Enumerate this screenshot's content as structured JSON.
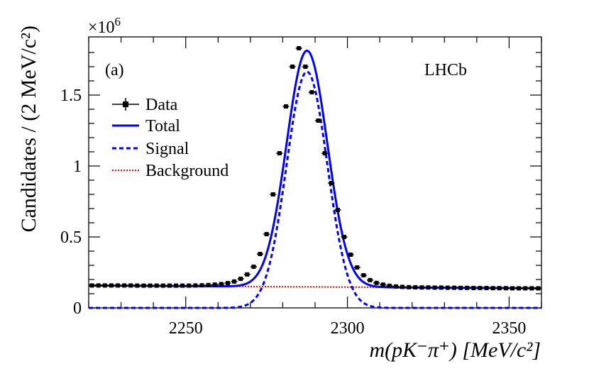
{
  "chart_data": {
    "type": "line",
    "panel_label": "(a)",
    "experiment_label": "LHCb",
    "multiplier": "×10",
    "multiplier_exp": "6",
    "ylabel": "Candidates / (2 MeV/c²)",
    "xlabel": "m(pK⁻π⁺) [MeV/c²]",
    "xlim": [
      2220,
      2360
    ],
    "ylim": [
      0,
      1.91
    ],
    "y_unit_scale": 1000000,
    "x_ticks": [
      2250,
      2300,
      2350
    ],
    "x_tick_labels": [
      "2250",
      "2300",
      "2350"
    ],
    "y_ticks": [
      0,
      0.5,
      1,
      1.5
    ],
    "y_tick_labels": [
      "0",
      "0.5",
      "1",
      "1.5"
    ],
    "legend": {
      "position": "top-left",
      "entries": [
        {
          "label": "Data",
          "style": "points",
          "color": "#000000"
        },
        {
          "label": "Total",
          "style": "solid",
          "color": "#0000ff"
        },
        {
          "label": "Signal",
          "style": "dashed",
          "color": "#0000ff"
        },
        {
          "label": "Background",
          "style": "dotted",
          "color": "#ff0000"
        }
      ]
    },
    "model": {
      "peak_mass": 2287.5,
      "signal_amplitude": 1.665,
      "signal_sigma": 6.3,
      "background_start": 0.158,
      "background_end": 0.138
    },
    "data_points": {
      "x": [
        2221,
        2223,
        2225,
        2227,
        2229,
        2231,
        2233,
        2235,
        2237,
        2239,
        2241,
        2243,
        2245,
        2247,
        2249,
        2251,
        2253,
        2255,
        2257,
        2259,
        2261,
        2263,
        2265,
        2267,
        2269,
        2271,
        2273,
        2275,
        2277,
        2279,
        2281,
        2283,
        2285,
        2287,
        2289,
        2291,
        2293,
        2295,
        2297,
        2299,
        2301,
        2303,
        2305,
        2307,
        2309,
        2311,
        2313,
        2315,
        2317,
        2319,
        2321,
        2323,
        2325,
        2327,
        2329,
        2331,
        2333,
        2335,
        2337,
        2339,
        2341,
        2343,
        2345,
        2347,
        2349,
        2351,
        2353,
        2355,
        2357,
        2359
      ],
      "y": [
        0.158,
        0.158,
        0.158,
        0.158,
        0.158,
        0.158,
        0.158,
        0.157,
        0.157,
        0.157,
        0.157,
        0.157,
        0.157,
        0.157,
        0.157,
        0.157,
        0.158,
        0.159,
        0.161,
        0.164,
        0.168,
        0.175,
        0.186,
        0.205,
        0.236,
        0.29,
        0.38,
        0.52,
        0.8,
        1.09,
        1.42,
        1.7,
        1.83,
        1.7,
        1.52,
        1.32,
        1.09,
        0.88,
        0.69,
        0.5,
        0.375,
        0.285,
        0.23,
        0.196,
        0.176,
        0.164,
        0.156,
        0.151,
        0.148,
        0.146,
        0.145,
        0.144,
        0.144,
        0.143,
        0.143,
        0.142,
        0.142,
        0.141,
        0.141,
        0.14,
        0.14,
        0.14,
        0.139,
        0.139,
        0.139,
        0.138,
        0.138,
        0.138,
        0.138,
        0.138
      ]
    }
  },
  "colors": {
    "total": "#0000ff",
    "signal": "#0000ff",
    "background": "#ff0000",
    "data": "#000000",
    "axis": "#000000"
  }
}
